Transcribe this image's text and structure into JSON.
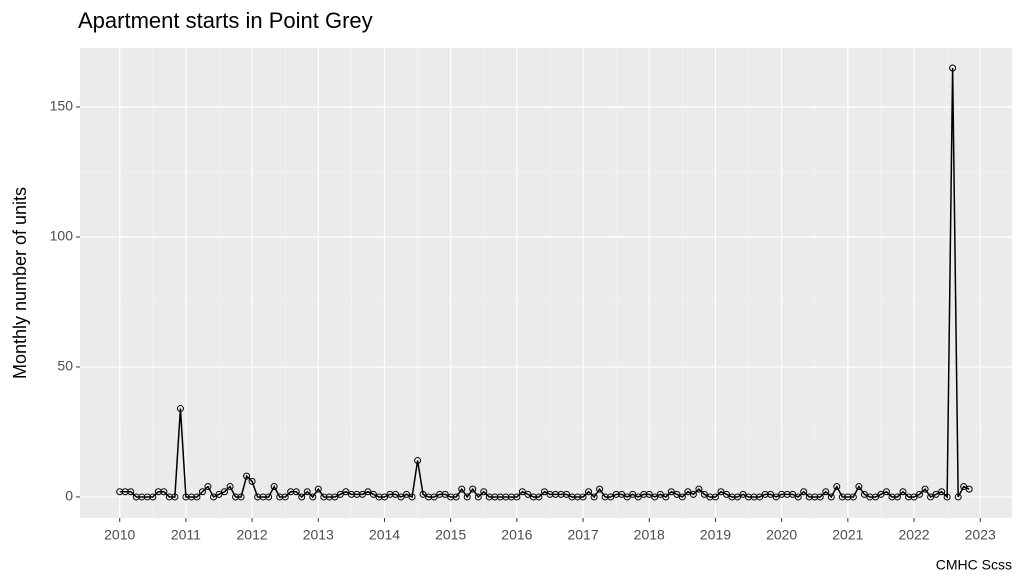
{
  "chart_data": {
    "type": "line",
    "title": "Apartment starts in Point Grey",
    "y_label": "Monthly number of units",
    "caption": "CMHC Scss",
    "x": [
      2010,
      2010.083,
      2010.167,
      2010.25,
      2010.333,
      2010.417,
      2010.5,
      2010.583,
      2010.667,
      2010.75,
      2010.833,
      2010.917,
      2011,
      2011.083,
      2011.167,
      2011.25,
      2011.333,
      2011.417,
      2011.5,
      2011.583,
      2011.667,
      2011.75,
      2011.833,
      2011.917,
      2012,
      2012.083,
      2012.167,
      2012.25,
      2012.333,
      2012.417,
      2012.5,
      2012.583,
      2012.667,
      2012.75,
      2012.833,
      2012.917,
      2013,
      2013.083,
      2013.167,
      2013.25,
      2013.333,
      2013.417,
      2013.5,
      2013.583,
      2013.667,
      2013.75,
      2013.833,
      2013.917,
      2014,
      2014.083,
      2014.167,
      2014.25,
      2014.333,
      2014.417,
      2014.5,
      2014.583,
      2014.667,
      2014.75,
      2014.833,
      2014.917,
      2015,
      2015.083,
      2015.167,
      2015.25,
      2015.333,
      2015.417,
      2015.5,
      2015.583,
      2015.667,
      2015.75,
      2015.833,
      2015.917,
      2016,
      2016.083,
      2016.167,
      2016.25,
      2016.333,
      2016.417,
      2016.5,
      2016.583,
      2016.667,
      2016.75,
      2016.833,
      2016.917,
      2017,
      2017.083,
      2017.167,
      2017.25,
      2017.333,
      2017.417,
      2017.5,
      2017.583,
      2017.667,
      2017.75,
      2017.833,
      2017.917,
      2018,
      2018.083,
      2018.167,
      2018.25,
      2018.333,
      2018.417,
      2018.5,
      2018.583,
      2018.667,
      2018.75,
      2018.833,
      2018.917,
      2019,
      2019.083,
      2019.167,
      2019.25,
      2019.333,
      2019.417,
      2019.5,
      2019.583,
      2019.667,
      2019.75,
      2019.833,
      2019.917,
      2020,
      2020.083,
      2020.167,
      2020.25,
      2020.333,
      2020.417,
      2020.5,
      2020.583,
      2020.667,
      2020.75,
      2020.833,
      2020.917,
      2021,
      2021.083,
      2021.167,
      2021.25,
      2021.333,
      2021.417,
      2021.5,
      2021.583,
      2021.667,
      2021.75,
      2021.833,
      2021.917,
      2022,
      2022.083,
      2022.167,
      2022.25,
      2022.333,
      2022.417,
      2022.5,
      2022.583,
      2022.667,
      2022.75,
      2022.833
    ],
    "values": [
      2,
      2,
      2,
      0,
      0,
      0,
      0,
      2,
      2,
      0,
      0,
      34,
      0,
      0,
      0,
      2,
      4,
      0,
      1,
      2,
      4,
      0,
      0,
      8,
      6,
      0,
      0,
      0,
      4,
      0,
      0,
      2,
      2,
      0,
      2,
      0,
      3,
      0,
      0,
      0,
      1,
      2,
      1,
      1,
      1,
      2,
      1,
      0,
      0,
      1,
      1,
      0,
      1,
      0,
      14,
      1,
      0,
      0,
      1,
      1,
      0,
      0,
      3,
      0,
      3,
      0,
      2,
      0,
      0,
      0,
      0,
      0,
      0,
      2,
      1,
      0,
      0,
      2,
      1,
      1,
      1,
      1,
      0,
      0,
      0,
      2,
      0,
      3,
      0,
      0,
      1,
      1,
      0,
      1,
      0,
      1,
      1,
      0,
      1,
      0,
      2,
      1,
      0,
      2,
      1,
      3,
      1,
      0,
      0,
      2,
      1,
      0,
      0,
      1,
      0,
      0,
      0,
      1,
      1,
      0,
      1,
      1,
      1,
      0,
      2,
      0,
      0,
      0,
      2,
      0,
      4,
      0,
      0,
      0,
      4,
      1,
      0,
      0,
      1,
      2,
      0,
      0,
      2,
      0,
      0,
      1,
      3,
      0,
      1,
      2,
      0,
      165,
      0,
      4,
      3
    ],
    "color": "#000000",
    "xlim": [
      2009.4,
      2023.48
    ],
    "xticks": [
      2010,
      2011,
      2012,
      2013,
      2014,
      2015,
      2016,
      2017,
      2018,
      2019,
      2020,
      2021,
      2022,
      2023
    ],
    "ylim": [
      -8.1,
      172.7
    ],
    "yticks": [
      0,
      50,
      100,
      150
    ],
    "grid": true
  }
}
